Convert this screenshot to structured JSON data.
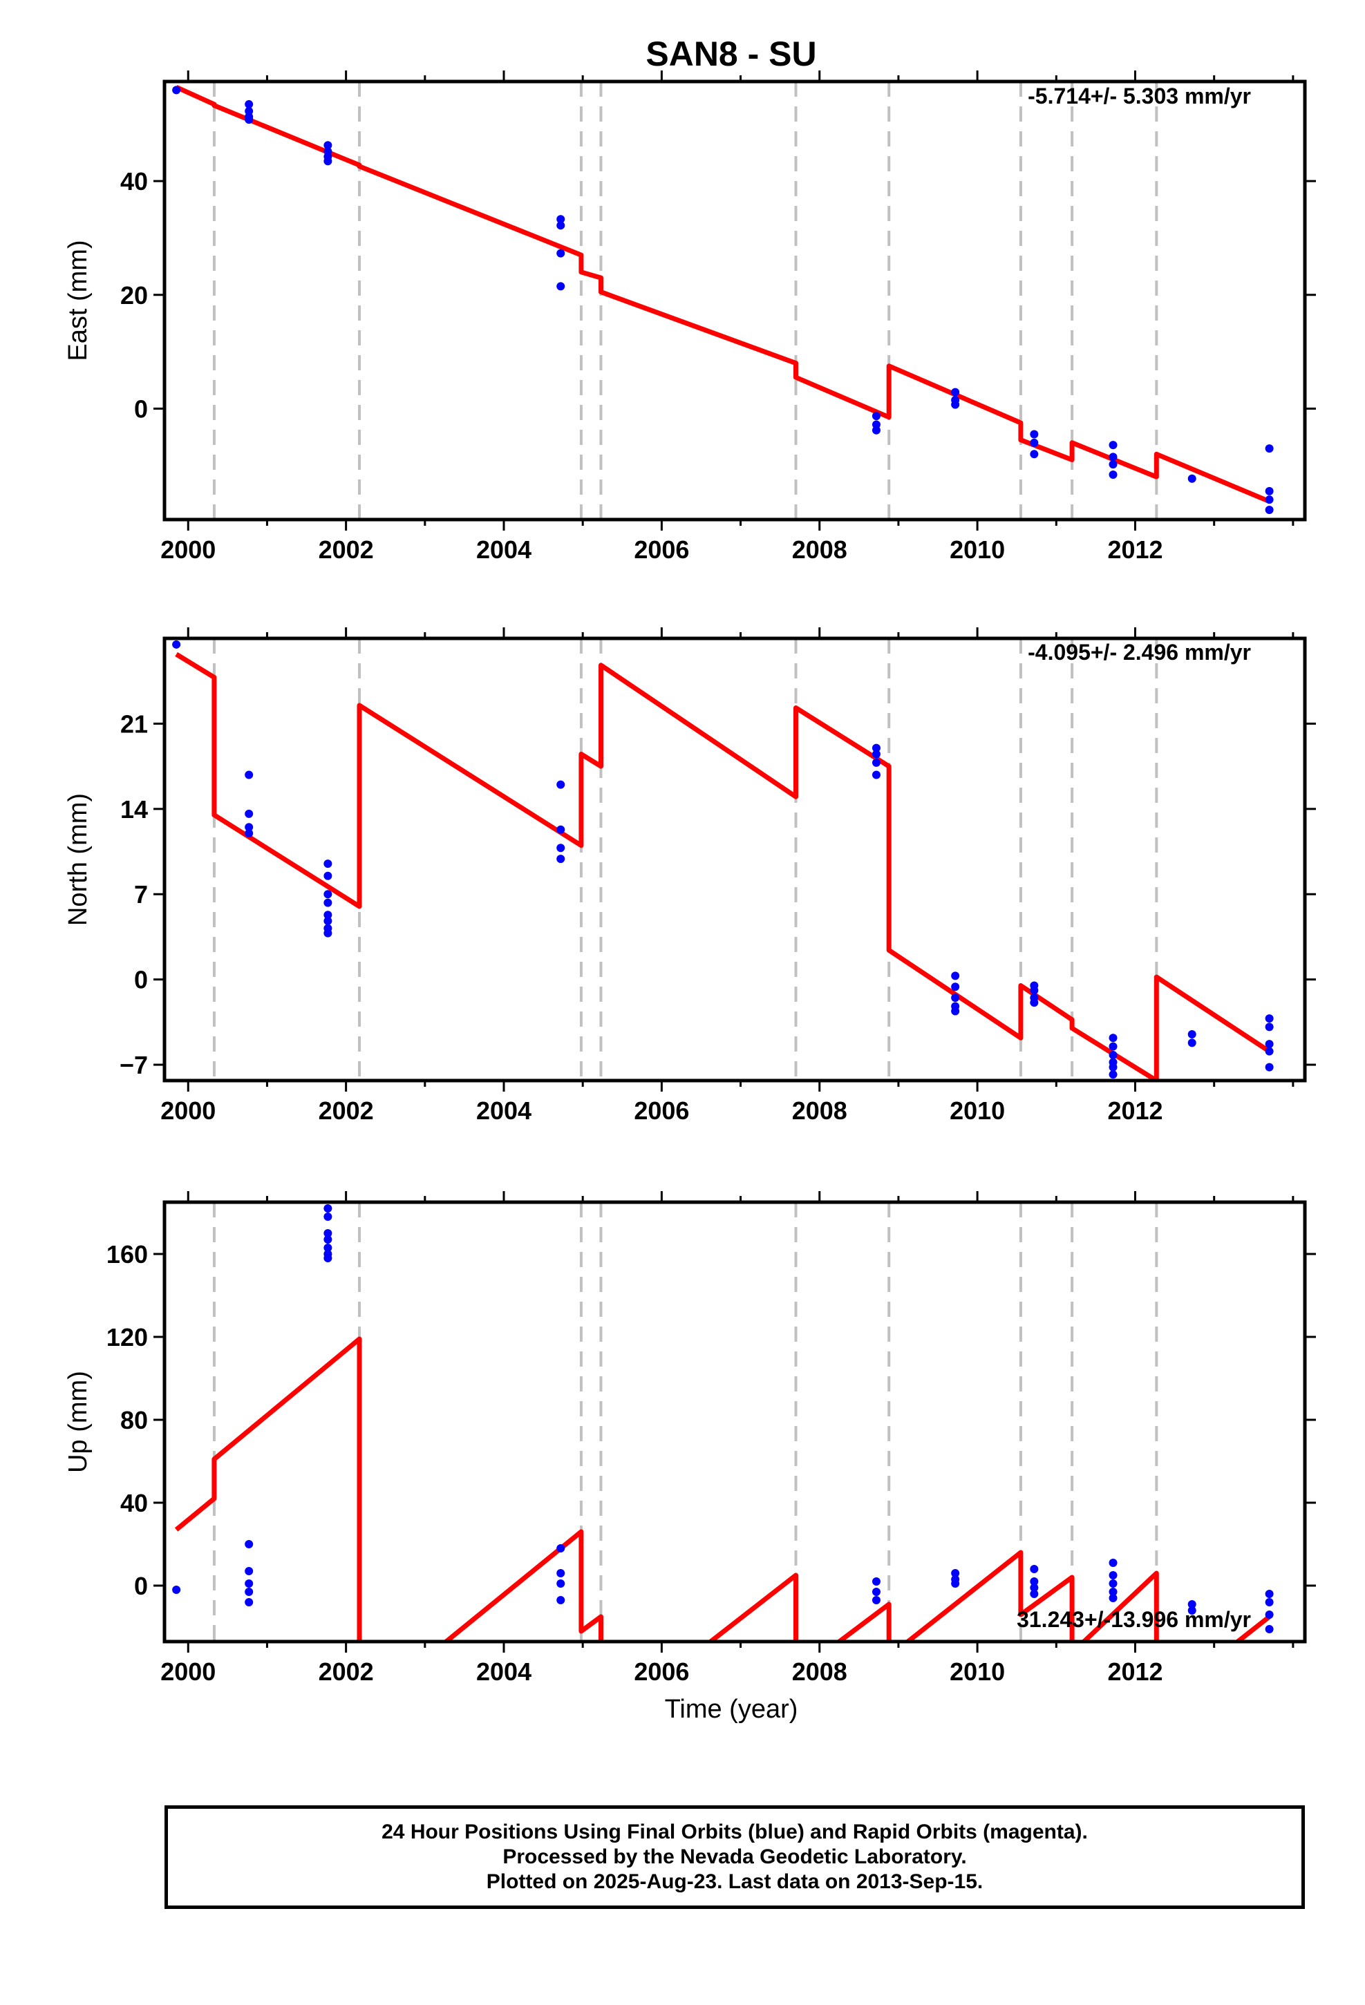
{
  "title": "SAN8 - SU",
  "xlabel": "Time (year)",
  "footer": {
    "line1": "24 Hour Positions Using Final Orbits (blue) and Rapid Orbits (magenta).",
    "line2": "Processed by the Nevada Geodetic Laboratory.",
    "line3": "Plotted on 2025-Aug-23. Last data on 2013-Sep-15."
  },
  "colors": {
    "model": "#ff0000",
    "points": "#0000ff",
    "breaks": "#c0c0c0",
    "frame": "#000000"
  },
  "chart_data": [
    {
      "type": "scatter",
      "name": "east",
      "ylabel": "East (mm)",
      "rate": "-5.714+/- 5.303 mm/yr",
      "xlim": [
        1999.7,
        2014.15
      ],
      "ylim": [
        -19.5,
        57.5
      ],
      "yticks": [
        0,
        20,
        40
      ],
      "xticks": [
        2000,
        2002,
        2004,
        2006,
        2008,
        2010,
        2012
      ],
      "breaks": [
        2000.33,
        2002.17,
        2004.98,
        2005.23,
        2007.7,
        2008.88,
        2010.55,
        2011.2,
        2012.27
      ],
      "points": [
        [
          1999.85,
          56
        ],
        [
          2000.77,
          53.5
        ],
        [
          2000.77,
          52.3
        ],
        [
          2000.77,
          51.3
        ],
        [
          2000.77,
          50.8
        ],
        [
          2001.77,
          46.3
        ],
        [
          2001.77,
          45.2
        ],
        [
          2001.77,
          44.3
        ],
        [
          2001.77,
          43.5
        ],
        [
          2004.72,
          33.3
        ],
        [
          2004.72,
          32.2
        ],
        [
          2004.72,
          27.3
        ],
        [
          2004.72,
          21.5
        ],
        [
          2008.72,
          -1.3
        ],
        [
          2008.72,
          -2.8
        ],
        [
          2008.72,
          -3.8
        ],
        [
          2009.72,
          2.9
        ],
        [
          2009.72,
          1.5
        ],
        [
          2009.72,
          0.7
        ],
        [
          2010.72,
          -4.5
        ],
        [
          2010.72,
          -6
        ],
        [
          2010.72,
          -8
        ],
        [
          2011.72,
          -6.4
        ],
        [
          2011.72,
          -8.5
        ],
        [
          2011.72,
          -9.8
        ],
        [
          2011.72,
          -11.6
        ],
        [
          2012.72,
          -12.3
        ],
        [
          2013.7,
          -7
        ],
        [
          2013.7,
          -14.5
        ],
        [
          2013.7,
          -16
        ],
        [
          2013.7,
          -17.8
        ]
      ],
      "model": [
        [
          1999.85,
          56.5
        ],
        [
          2000.33,
          53.5
        ],
        [
          2000.33,
          53.3
        ],
        [
          2002.17,
          42.8
        ],
        [
          2002.17,
          42.6
        ],
        [
          2004.98,
          27
        ],
        [
          2004.98,
          24
        ],
        [
          2005.23,
          23
        ],
        [
          2005.23,
          20.5
        ],
        [
          2007.7,
          8
        ],
        [
          2007.7,
          5.5
        ],
        [
          2008.88,
          -1.5
        ],
        [
          2008.88,
          7.5
        ],
        [
          2010.55,
          -2.5
        ],
        [
          2010.55,
          -5.5
        ],
        [
          2011.2,
          -9
        ],
        [
          2011.2,
          -6
        ],
        [
          2012.27,
          -12
        ],
        [
          2012.27,
          -8
        ],
        [
          2013.7,
          -16.3
        ]
      ]
    },
    {
      "type": "scatter",
      "name": "north",
      "ylabel": "North (mm)",
      "rate": "-4.095+/- 2.496 mm/yr",
      "xlim": [
        1999.7,
        2014.15
      ],
      "ylim": [
        -8.3,
        28
      ],
      "yticks": [
        -7,
        0,
        7,
        14,
        21
      ],
      "xticks": [
        2000,
        2002,
        2004,
        2006,
        2008,
        2010,
        2012
      ],
      "breaks": [
        2000.33,
        2002.17,
        2004.98,
        2005.23,
        2007.7,
        2008.88,
        2010.55,
        2011.2,
        2012.27
      ],
      "points": [
        [
          1999.85,
          27.5
        ],
        [
          2000.77,
          16.8
        ],
        [
          2000.77,
          13.6
        ],
        [
          2000.77,
          12.5
        ],
        [
          2000.77,
          12
        ],
        [
          2001.77,
          9.5
        ],
        [
          2001.77,
          8.5
        ],
        [
          2001.77,
          7
        ],
        [
          2001.77,
          6.3
        ],
        [
          2001.77,
          5.3
        ],
        [
          2001.77,
          4.8
        ],
        [
          2001.77,
          4.2
        ],
        [
          2001.77,
          3.8
        ],
        [
          2004.72,
          16
        ],
        [
          2004.72,
          12.3
        ],
        [
          2004.72,
          10.8
        ],
        [
          2004.72,
          9.9
        ],
        [
          2008.72,
          19
        ],
        [
          2008.72,
          18.5
        ],
        [
          2008.72,
          17.8
        ],
        [
          2008.72,
          16.8
        ],
        [
          2009.72,
          0.3
        ],
        [
          2009.72,
          -0.6
        ],
        [
          2009.72,
          -1.5
        ],
        [
          2009.72,
          -2.2
        ],
        [
          2009.72,
          -2.6
        ],
        [
          2010.72,
          -0.5
        ],
        [
          2010.72,
          -0.9
        ],
        [
          2010.72,
          -1.5
        ],
        [
          2010.72,
          -1.9
        ],
        [
          2011.72,
          -4.8
        ],
        [
          2011.72,
          -5.5
        ],
        [
          2011.72,
          -6.2
        ],
        [
          2011.72,
          -6.8
        ],
        [
          2011.72,
          -7.2
        ],
        [
          2011.72,
          -7.8
        ],
        [
          2012.72,
          -4.5
        ],
        [
          2012.72,
          -5.2
        ],
        [
          2013.7,
          -3.2
        ],
        [
          2013.7,
          -3.9
        ],
        [
          2013.7,
          -5.3
        ],
        [
          2013.7,
          -5.9
        ],
        [
          2013.7,
          -7.2
        ]
      ],
      "model": [
        [
          1999.85,
          26.7
        ],
        [
          2000.33,
          24.8
        ],
        [
          2000.33,
          13.5
        ],
        [
          2002.17,
          6
        ],
        [
          2002.17,
          22.5
        ],
        [
          2004.98,
          11
        ],
        [
          2004.98,
          18.5
        ],
        [
          2005.23,
          17.5
        ],
        [
          2005.23,
          25.8
        ],
        [
          2007.7,
          15
        ],
        [
          2007.7,
          22.3
        ],
        [
          2008.88,
          17.5
        ],
        [
          2008.88,
          2.4
        ],
        [
          2010.55,
          -4.8
        ],
        [
          2010.55,
          -0.5
        ],
        [
          2011.2,
          -3.3
        ],
        [
          2011.2,
          -4
        ],
        [
          2012.27,
          -8.3
        ],
        [
          2012.27,
          0.2
        ],
        [
          2013.7,
          -5.9
        ]
      ]
    },
    {
      "type": "scatter",
      "name": "up",
      "ylabel": "Up (mm)",
      "rate": "31.243+/-13.996 mm/yr",
      "xlim": [
        1999.7,
        2014.15
      ],
      "ylim": [
        -27,
        185
      ],
      "yticks": [
        0,
        40,
        80,
        120,
        160
      ],
      "xticks": [
        2000,
        2002,
        2004,
        2006,
        2008,
        2010,
        2012
      ],
      "breaks": [
        2000.33,
        2002.17,
        2004.98,
        2005.23,
        2007.7,
        2008.88,
        2010.55,
        2011.2,
        2012.27
      ],
      "points": [
        [
          1999.85,
          -2
        ],
        [
          2000.77,
          20
        ],
        [
          2000.77,
          7
        ],
        [
          2000.77,
          1
        ],
        [
          2000.77,
          -3
        ],
        [
          2000.77,
          -8
        ],
        [
          2001.77,
          182
        ],
        [
          2001.77,
          178
        ],
        [
          2001.77,
          170
        ],
        [
          2001.77,
          167
        ],
        [
          2001.77,
          163
        ],
        [
          2001.77,
          160
        ],
        [
          2001.77,
          158
        ],
        [
          2004.72,
          18
        ],
        [
          2004.72,
          6
        ],
        [
          2004.72,
          1
        ],
        [
          2004.72,
          -7
        ],
        [
          2008.72,
          2
        ],
        [
          2008.72,
          -3
        ],
        [
          2008.72,
          -7
        ],
        [
          2009.72,
          6
        ],
        [
          2009.72,
          3
        ],
        [
          2009.72,
          1
        ],
        [
          2010.72,
          8
        ],
        [
          2010.72,
          2
        ],
        [
          2010.72,
          -1
        ],
        [
          2010.72,
          -4
        ],
        [
          2011.72,
          11
        ],
        [
          2011.72,
          5
        ],
        [
          2011.72,
          1
        ],
        [
          2011.72,
          -3
        ],
        [
          2011.72,
          -6
        ],
        [
          2012.72,
          -9
        ],
        [
          2012.72,
          -12
        ],
        [
          2013.7,
          -4
        ],
        [
          2013.7,
          -8
        ],
        [
          2013.7,
          -14
        ],
        [
          2013.7,
          -21
        ]
      ],
      "model": [
        [
          1999.85,
          27
        ],
        [
          2000.33,
          42
        ],
        [
          2000.33,
          61
        ],
        [
          2002.17,
          119
        ],
        [
          2002.17,
          -27
        ],
        [
          null,
          null
        ],
        [
          2003.27,
          -27
        ],
        [
          2004.98,
          26
        ],
        [
          2004.98,
          -22
        ],
        [
          2005.23,
          -15
        ],
        [
          2005.23,
          -27
        ],
        [
          null,
          null
        ],
        [
          2006.62,
          -27
        ],
        [
          2007.7,
          5
        ],
        [
          2007.7,
          -27
        ],
        [
          null,
          null
        ],
        [
          2008.25,
          -27
        ],
        [
          2008.88,
          -9
        ],
        [
          2008.88,
          -27
        ],
        [
          null,
          null
        ],
        [
          2009.12,
          -27
        ],
        [
          2010.55,
          16
        ],
        [
          2010.55,
          -14
        ],
        [
          2011.2,
          4
        ],
        [
          2011.2,
          -27
        ],
        [
          null,
          null
        ],
        [
          2011.35,
          -27
        ],
        [
          2012.27,
          6
        ],
        [
          2012.27,
          -27
        ],
        [
          null,
          null
        ],
        [
          2013.3,
          -27
        ],
        [
          2013.7,
          -15
        ]
      ]
    }
  ]
}
